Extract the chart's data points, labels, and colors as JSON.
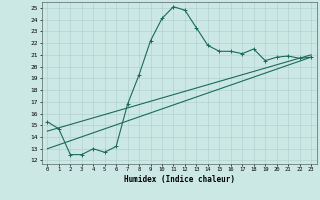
{
  "xlabel": "Humidex (Indice chaleur)",
  "bg_color": "#cce8e4",
  "line_color": "#1a6b5a",
  "grid_color": "#aacccc",
  "xlim": [
    -0.5,
    23.5
  ],
  "ylim": [
    11.7,
    25.5
  ],
  "xticks": [
    0,
    1,
    2,
    3,
    4,
    5,
    6,
    7,
    8,
    9,
    10,
    11,
    12,
    13,
    14,
    15,
    16,
    17,
    18,
    19,
    20,
    21,
    22,
    23
  ],
  "yticks": [
    12,
    13,
    14,
    15,
    16,
    17,
    18,
    19,
    20,
    21,
    22,
    23,
    24,
    25
  ],
  "curve1_x": [
    0,
    1,
    2,
    3,
    4,
    5,
    6,
    7,
    8,
    9,
    10,
    11,
    12,
    13,
    14,
    15,
    16,
    17,
    18,
    19,
    20,
    21,
    22,
    23
  ],
  "curve1_y": [
    15.3,
    14.7,
    12.5,
    12.5,
    13.0,
    12.7,
    13.2,
    16.8,
    19.3,
    22.2,
    24.1,
    25.1,
    24.8,
    23.3,
    21.8,
    21.3,
    21.3,
    21.1,
    21.5,
    20.5,
    20.8,
    20.9,
    20.7,
    20.8
  ],
  "curve2_x": [
    0,
    23
  ],
  "curve2_y": [
    13.0,
    20.8
  ],
  "curve3_x": [
    0,
    23
  ],
  "curve3_y": [
    14.5,
    21.0
  ],
  "marker_style": "+"
}
